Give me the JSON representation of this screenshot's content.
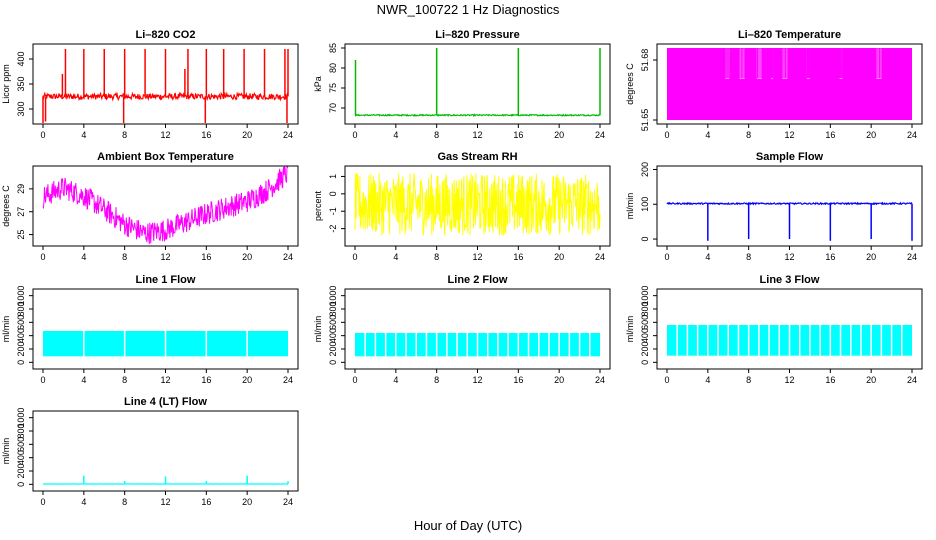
{
  "title": "NWR_100722  1 Hz Diagnostics",
  "xlabel": "Hour of Day (UTC)",
  "chart_data": [
    {
      "type": "line",
      "title": "Li–820 CO2",
      "ylabel": "Licor ppm",
      "color": "#ff0000",
      "xlim": [
        0,
        24
      ],
      "ylim": [
        270,
        430
      ],
      "yticks": [
        300,
        350,
        400
      ],
      "baseline": 325,
      "noise": 6,
      "spikes": [
        [
          0.0,
          250
        ],
        [
          0.25,
          275
        ],
        [
          1.9,
          370
        ],
        [
          2.2,
          420
        ],
        [
          4.0,
          420
        ],
        [
          6.0,
          420
        ],
        [
          7.9,
          250
        ],
        [
          8.0,
          420
        ],
        [
          10.0,
          420
        ],
        [
          12.0,
          420
        ],
        [
          13.9,
          380
        ],
        [
          14.2,
          420
        ],
        [
          15.9,
          255
        ],
        [
          16.0,
          420
        ],
        [
          17.7,
          420
        ],
        [
          19.7,
          420
        ],
        [
          21.7,
          420
        ],
        [
          23.7,
          420
        ],
        [
          23.9,
          260
        ],
        [
          24.0,
          420
        ]
      ]
    },
    {
      "type": "line",
      "title": "Li–820 Pressure",
      "ylabel": "kPa",
      "color": "#00bb00",
      "xlim": [
        0,
        24
      ],
      "ylim": [
        66,
        86
      ],
      "yticks": [
        70,
        75,
        80,
        85
      ],
      "baseline": 68.2,
      "noise": 0.15,
      "spikes": [
        [
          0.05,
          82
        ],
        [
          8.0,
          85
        ],
        [
          16.0,
          85
        ],
        [
          24.0,
          85
        ]
      ]
    },
    {
      "type": "band",
      "title": "Li–820 Temperature",
      "ylabel": "degrees C",
      "color": "#ff00ff",
      "xlim": [
        0,
        24
      ],
      "ylim": [
        51.648,
        51.688
      ],
      "yticks": [
        51.65,
        51.68
      ],
      "low": 51.65,
      "high": 51.686,
      "mid": 51.671,
      "gaps": [
        [
          5.7,
          6.1
        ],
        [
          7.1,
          7.6
        ],
        [
          8.8,
          9.3
        ],
        [
          10.2,
          10.4
        ],
        [
          11.3,
          11.8
        ],
        [
          13.7,
          14.0
        ],
        [
          16.9,
          17.2
        ],
        [
          20.5,
          21.0
        ]
      ]
    },
    {
      "type": "curve",
      "title": "Ambient Box Temperature",
      "ylabel": "degrees C",
      "color": "#ff00ff",
      "xlim": [
        0,
        24
      ],
      "ylim": [
        24,
        31
      ],
      "yticks": [
        25,
        27,
        29
      ],
      "amp": 1.0,
      "knots": [
        [
          0,
          28.3
        ],
        [
          2,
          29.1
        ],
        [
          4,
          28.4
        ],
        [
          6,
          27.2
        ],
        [
          8,
          25.9
        ],
        [
          10,
          25.1
        ],
        [
          12,
          25.4
        ],
        [
          14,
          26.1
        ],
        [
          16,
          26.8
        ],
        [
          18,
          27.4
        ],
        [
          20,
          27.9
        ],
        [
          22,
          28.9
        ],
        [
          24,
          30.4
        ]
      ]
    },
    {
      "type": "noise",
      "title": "Gas Stream RH",
      "ylabel": "percent",
      "color": "#ffff00",
      "xlim": [
        0,
        24
      ],
      "ylim": [
        -3,
        1.6
      ],
      "yticks": [
        -2,
        -1,
        0,
        1
      ],
      "low": -2.4,
      "high": 1.2
    },
    {
      "type": "line",
      "title": "Sample Flow",
      "ylabel": "ml/min",
      "color": "#0000ff",
      "xlim": [
        0,
        24
      ],
      "ylim": [
        -20,
        210
      ],
      "yticks": [
        0,
        100,
        200
      ],
      "baseline": 102,
      "noise": 2,
      "spikes": [
        [
          4.0,
          -5
        ],
        [
          8.0,
          0
        ],
        [
          12.0,
          0
        ],
        [
          16.0,
          -5
        ],
        [
          20.0,
          0
        ],
        [
          24.0,
          -5
        ]
      ]
    },
    {
      "type": "flow",
      "title": "Line 1 Flow",
      "ylabel": "ml/min",
      "color": "#00ffff",
      "xlim": [
        0,
        24
      ],
      "ylim": [
        -100,
        1100
      ],
      "yticks": [
        0,
        200,
        400,
        600,
        800,
        1000
      ],
      "low": 90,
      "high": 470,
      "gapStep": 4
    },
    {
      "type": "flow",
      "title": "Line 2 Flow",
      "ylabel": "ml/min",
      "color": "#00ffff",
      "xlim": [
        0,
        24
      ],
      "ylim": [
        -100,
        1100
      ],
      "yticks": [
        0,
        200,
        400,
        600,
        800,
        1000
      ],
      "low": 90,
      "high": 440,
      "gapStep": 1
    },
    {
      "type": "flow",
      "title": "Line 3 Flow",
      "ylabel": "ml/min",
      "color": "#00ffff",
      "xlim": [
        0,
        24
      ],
      "ylim": [
        -100,
        1100
      ],
      "yticks": [
        0,
        200,
        400,
        600,
        800,
        1000
      ],
      "low": 100,
      "high": 560,
      "gapStep": 1
    },
    {
      "type": "line",
      "title": "Line 4 (LT) Flow",
      "ylabel": "ml/min",
      "color": "#00ffff",
      "xlim": [
        0,
        24
      ],
      "ylim": [
        -100,
        1100
      ],
      "yticks": [
        0,
        200,
        400,
        600,
        800,
        1000
      ],
      "baseline": 5,
      "noise": 2,
      "spikes": [
        [
          4.0,
          130
        ],
        [
          8.0,
          50
        ],
        [
          12.0,
          120
        ],
        [
          16.0,
          50
        ],
        [
          20.0,
          130
        ],
        [
          24.0,
          50
        ]
      ]
    }
  ]
}
